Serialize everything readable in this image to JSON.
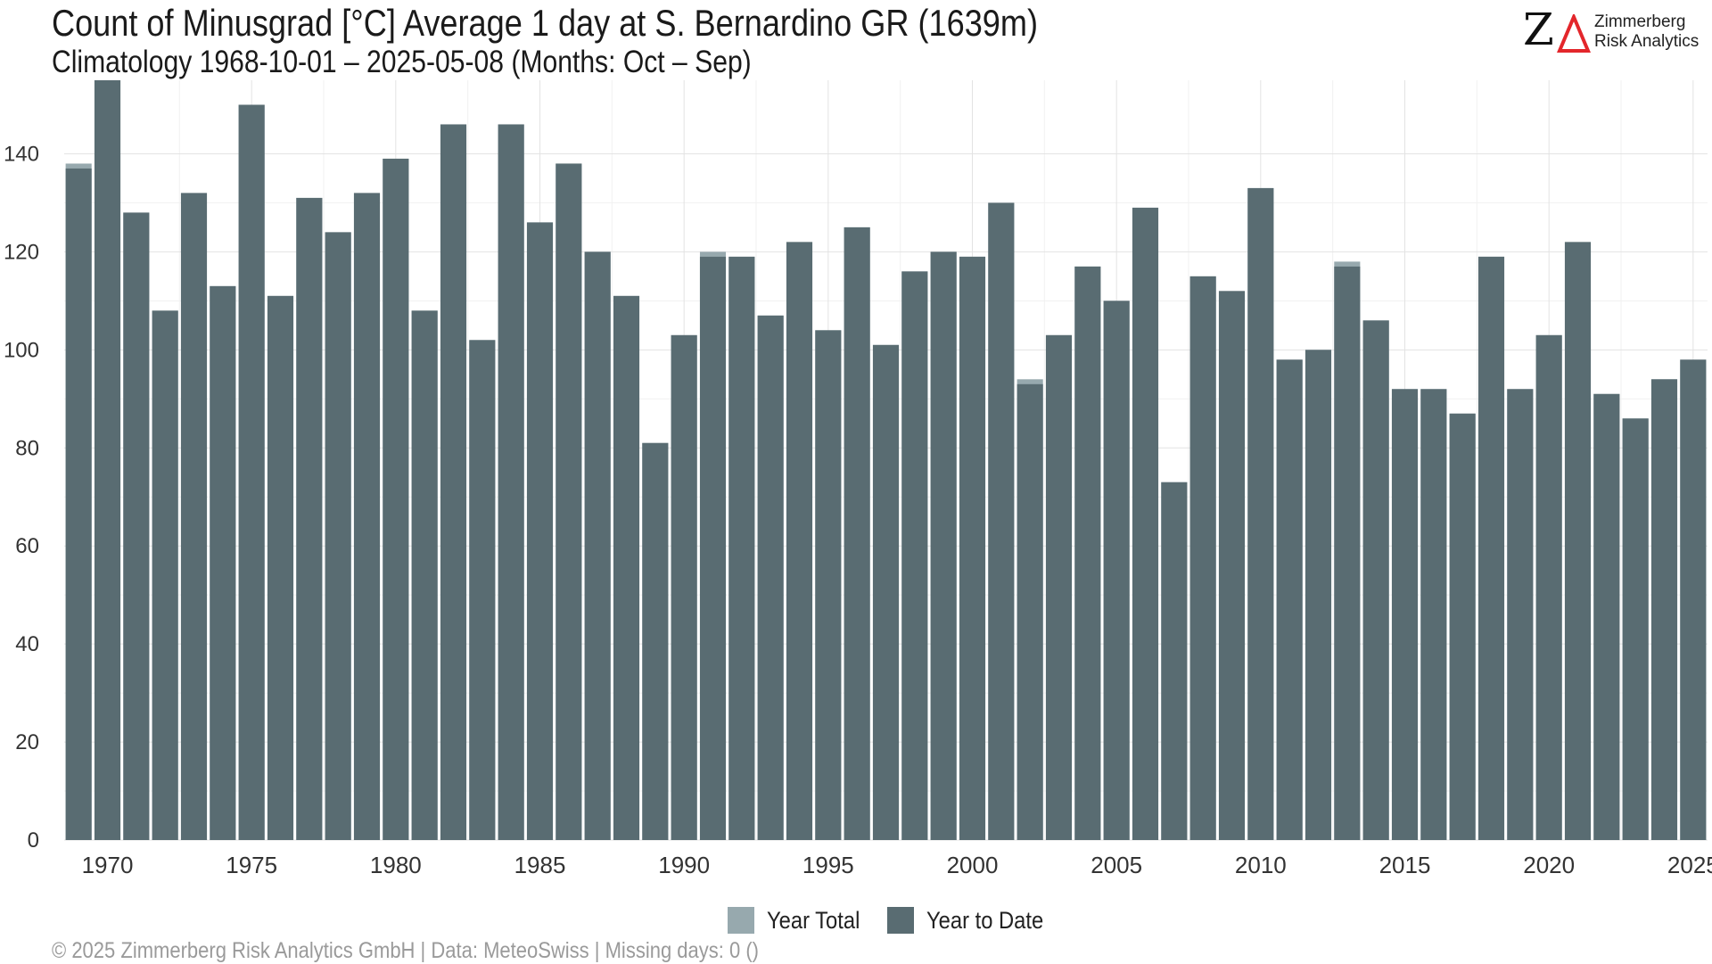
{
  "header": {
    "title": "Count of Minusgrad [°C] Average 1 day at S. Bernardino  GR (1639m)",
    "subtitle": "Climatology 1968-10-01 – 2025-05-08 (Months: Oct – Sep)"
  },
  "logo": {
    "line1": "Zimmerberg",
    "line2": "Risk Analytics",
    "mark_letter": "Z",
    "mark_color": "#e3262b"
  },
  "footer": {
    "text": "©  2025 Zimmerberg Risk Analytics GmbH | Data: MeteoSwiss | Missing days: 0 ()"
  },
  "colors": {
    "year_total": "#97a9ae",
    "year_to_date": "#596c72",
    "grid": "#e3e3e3",
    "tick_text": "#333333"
  },
  "chart_data": {
    "type": "bar",
    "xlabel": "",
    "ylabel": "",
    "ylim": [
      0,
      155
    ],
    "yticks": [
      0,
      20,
      40,
      60,
      80,
      100,
      120,
      140
    ],
    "xticks": [
      1970,
      1975,
      1980,
      1985,
      1990,
      1995,
      2000,
      2005,
      2010,
      2015,
      2020,
      2025
    ],
    "grid": true,
    "legend_position": "bottom",
    "x": [
      1969,
      1970,
      1971,
      1972,
      1973,
      1974,
      1975,
      1976,
      1977,
      1978,
      1979,
      1980,
      1981,
      1982,
      1983,
      1984,
      1985,
      1986,
      1987,
      1988,
      1989,
      1990,
      1991,
      1992,
      1993,
      1994,
      1995,
      1996,
      1997,
      1998,
      1999,
      2000,
      2001,
      2002,
      2003,
      2004,
      2005,
      2006,
      2007,
      2008,
      2009,
      2010,
      2011,
      2012,
      2013,
      2014,
      2015,
      2016,
      2017,
      2018,
      2019,
      2020,
      2021,
      2022,
      2023,
      2024,
      2025
    ],
    "series": [
      {
        "name": "Year Total",
        "values": [
          138,
          155,
          128,
          108,
          132,
          113,
          150,
          111,
          131,
          124,
          132,
          139,
          108,
          146,
          102,
          146,
          126,
          138,
          120,
          111,
          81,
          103,
          120,
          119,
          107,
          122,
          104,
          125,
          101,
          116,
          120,
          119,
          130,
          94,
          103,
          117,
          110,
          129,
          73,
          115,
          112,
          133,
          98,
          100,
          118,
          106,
          92,
          92,
          87,
          119,
          92,
          103,
          122,
          91,
          86,
          94,
          98
        ]
      },
      {
        "name": "Year to Date",
        "values": [
          137,
          155,
          128,
          108,
          132,
          113,
          150,
          111,
          131,
          124,
          132,
          139,
          108,
          146,
          102,
          146,
          126,
          138,
          120,
          111,
          81,
          103,
          119,
          119,
          107,
          122,
          104,
          125,
          101,
          116,
          120,
          119,
          130,
          93,
          103,
          117,
          110,
          129,
          73,
          115,
          112,
          133,
          98,
          100,
          117,
          106,
          92,
          92,
          87,
          119,
          92,
          103,
          122,
          91,
          86,
          94,
          98
        ]
      }
    ]
  }
}
